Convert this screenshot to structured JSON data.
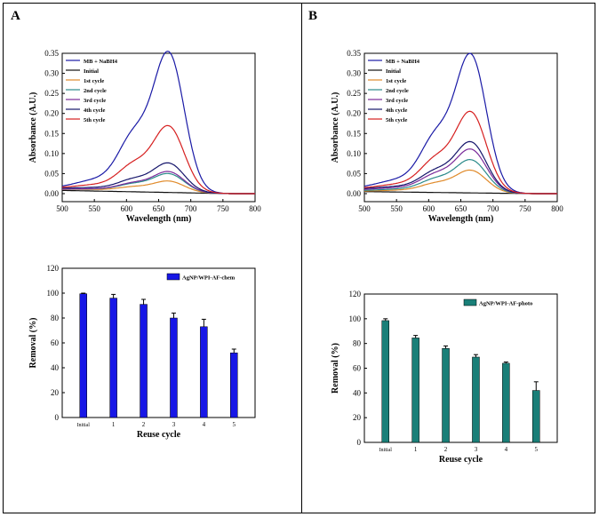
{
  "panels": {
    "a_label": "A",
    "b_label": "B"
  },
  "chart_data": [
    {
      "id": "a-spectra",
      "type": "line",
      "xlabel": "Wavelength (nm)",
      "ylabel": "Absorbance (A.U.)",
      "xlim": [
        500,
        800
      ],
      "ylim": [
        -0.02,
        0.35
      ],
      "xticks": [
        "500",
        "550",
        "600",
        "650",
        "700",
        "750",
        "800"
      ],
      "yticks": [
        "0.00",
        "0.05",
        "0.10",
        "0.15",
        "0.20",
        "0.25",
        "0.30",
        "0.35"
      ],
      "legend": "top-left",
      "series": [
        {
          "name": "MB + NaBH4",
          "color": "#1a1aa6",
          "peak": 0.34,
          "base": 0.01
        },
        {
          "name": "Initial",
          "color": "#111111",
          "peak": 0.0,
          "base": 0.008
        },
        {
          "name": "1st cycle",
          "color": "#e08a2a",
          "peak": 0.027,
          "base": 0.01
        },
        {
          "name": "2nd cycle",
          "color": "#2a8a8a",
          "peak": 0.045,
          "base": 0.01
        },
        {
          "name": "3rd cycle",
          "color": "#7a2a9a",
          "peak": 0.05,
          "base": 0.01
        },
        {
          "name": "4th cycle",
          "color": "#15156b",
          "peak": 0.07,
          "base": 0.012
        },
        {
          "name": "5th cycle",
          "color": "#d62020",
          "peak": 0.16,
          "base": 0.012
        }
      ]
    },
    {
      "id": "b-spectra",
      "type": "line",
      "xlabel": "Wavelength (nm)",
      "ylabel": "Absorbance (A.U.)",
      "xlim": [
        500,
        800
      ],
      "ylim": [
        -0.02,
        0.35
      ],
      "xticks": [
        "500",
        "550",
        "600",
        "650",
        "700",
        "750",
        "800"
      ],
      "yticks": [
        "0.00",
        "0.05",
        "0.10",
        "0.15",
        "0.20",
        "0.25",
        "0.30",
        "0.35"
      ],
      "legend": "top-left",
      "series": [
        {
          "name": "MB + NaBH4",
          "color": "#1a1aa6",
          "peak": 0.335,
          "base": 0.01
        },
        {
          "name": "Initial",
          "color": "#111111",
          "peak": 0.0,
          "base": 0.005
        },
        {
          "name": "1st cycle",
          "color": "#e08a2a",
          "peak": 0.055,
          "base": 0.005
        },
        {
          "name": "2nd cycle",
          "color": "#2a8a8a",
          "peak": 0.08,
          "base": 0.006
        },
        {
          "name": "3rd cycle",
          "color": "#7a2a9a",
          "peak": 0.105,
          "base": 0.008
        },
        {
          "name": "4th cycle",
          "color": "#15156b",
          "peak": 0.122,
          "base": 0.01
        },
        {
          "name": "5th cycle",
          "color": "#d62020",
          "peak": 0.195,
          "base": 0.01
        }
      ]
    },
    {
      "id": "a-bars",
      "type": "bar",
      "xlabel": "Reuse cycle",
      "ylabel": "Removal (%)",
      "categories": [
        "Initial",
        "1",
        "2",
        "3",
        "4",
        "5"
      ],
      "values": [
        99.5,
        96,
        91,
        80,
        73,
        52
      ],
      "errors": [
        0.5,
        3,
        4,
        4,
        6,
        3
      ],
      "ylim": [
        0,
        120
      ],
      "yticks": [
        "0",
        "20",
        "40",
        "60",
        "80",
        "100",
        "120"
      ],
      "legend_label": "AgNP/WPI-AF-chem",
      "color": "#1717e6"
    },
    {
      "id": "b-bars",
      "type": "bar",
      "xlabel": "Reuse cycle",
      "ylabel": "Removal (%)",
      "categories": [
        "Initial",
        "1",
        "2",
        "3",
        "4",
        "5"
      ],
      "values": [
        98.5,
        84.5,
        76,
        69,
        64,
        42
      ],
      "errors": [
        1.5,
        2,
        2,
        2,
        1,
        7
      ],
      "ylim": [
        0,
        120
      ],
      "yticks": [
        "0",
        "20",
        "40",
        "60",
        "80",
        "100",
        "120"
      ],
      "legend_label": "AgNP/WPI-AF-photo",
      "color": "#1a7f78"
    }
  ]
}
